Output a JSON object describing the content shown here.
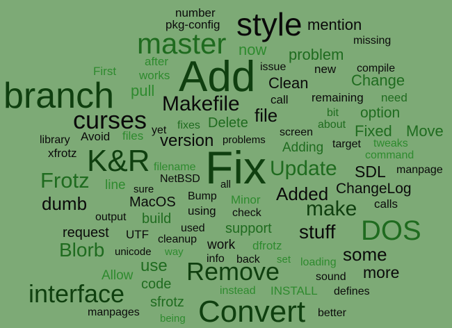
{
  "colors": {
    "background": "#7daa76",
    "black": "#0a0a0a",
    "dark_green": "#0f3f0f",
    "mid_green": "#1f6b1f",
    "light_green": "#2e8a2e"
  },
  "words": [
    {
      "text": "number",
      "color": "black"
    },
    {
      "text": "pkg-config",
      "color": "black"
    },
    {
      "text": "style",
      "color": "black"
    },
    {
      "text": "mention",
      "color": "black"
    },
    {
      "text": "master",
      "color": "mid_green"
    },
    {
      "text": "now",
      "color": "light_green"
    },
    {
      "text": "missing",
      "color": "black"
    },
    {
      "text": "problem",
      "color": "mid_green"
    },
    {
      "text": "after",
      "color": "light_green"
    },
    {
      "text": "First",
      "color": "light_green"
    },
    {
      "text": "works",
      "color": "light_green"
    },
    {
      "text": "Add",
      "color": "dark_green"
    },
    {
      "text": "issue",
      "color": "black"
    },
    {
      "text": "new",
      "color": "black"
    },
    {
      "text": "compile",
      "color": "black"
    },
    {
      "text": "Change",
      "color": "mid_green"
    },
    {
      "text": "branch",
      "color": "dark_green"
    },
    {
      "text": "pull",
      "color": "light_green"
    },
    {
      "text": "Clean",
      "color": "black"
    },
    {
      "text": "call",
      "color": "black"
    },
    {
      "text": "remaining",
      "color": "black"
    },
    {
      "text": "need",
      "color": "mid_green"
    },
    {
      "text": "Makefile",
      "color": "black"
    },
    {
      "text": "file",
      "color": "black"
    },
    {
      "text": "option",
      "color": "mid_green"
    },
    {
      "text": "bit",
      "color": "mid_green"
    },
    {
      "text": "curses",
      "color": "black"
    },
    {
      "text": "fixes",
      "color": "mid_green"
    },
    {
      "text": "Delete",
      "color": "mid_green"
    },
    {
      "text": "about",
      "color": "mid_green"
    },
    {
      "text": "Fixed",
      "color": "mid_green"
    },
    {
      "text": "Move",
      "color": "mid_green"
    },
    {
      "text": "library",
      "color": "black"
    },
    {
      "text": "Avoid",
      "color": "black"
    },
    {
      "text": "files",
      "color": "light_green"
    },
    {
      "text": "yet",
      "color": "black"
    },
    {
      "text": "screen",
      "color": "black"
    },
    {
      "text": "version",
      "color": "black"
    },
    {
      "text": "problems",
      "color": "black"
    },
    {
      "text": "target",
      "color": "black"
    },
    {
      "text": "tweaks",
      "color": "light_green"
    },
    {
      "text": "xfrotz",
      "color": "black"
    },
    {
      "text": "Adding",
      "color": "mid_green"
    },
    {
      "text": "command",
      "color": "light_green"
    },
    {
      "text": "K&R",
      "color": "dark_green"
    },
    {
      "text": "Fix",
      "color": "dark_green"
    },
    {
      "text": "Update",
      "color": "mid_green"
    },
    {
      "text": "SDL",
      "color": "black"
    },
    {
      "text": "filename",
      "color": "light_green"
    },
    {
      "text": "manpage",
      "color": "black"
    },
    {
      "text": "Frotz",
      "color": "mid_green"
    },
    {
      "text": "NetBSD",
      "color": "black"
    },
    {
      "text": "all",
      "color": "black"
    },
    {
      "text": "line",
      "color": "light_green"
    },
    {
      "text": "sure",
      "color": "black"
    },
    {
      "text": "ChangeLog",
      "color": "black"
    },
    {
      "text": "Added",
      "color": "black"
    },
    {
      "text": "Bump",
      "color": "black"
    },
    {
      "text": "dumb",
      "color": "black"
    },
    {
      "text": "MacOS",
      "color": "black"
    },
    {
      "text": "Minor",
      "color": "light_green"
    },
    {
      "text": "calls",
      "color": "black"
    },
    {
      "text": "make",
      "color": "dark_green"
    },
    {
      "text": "using",
      "color": "black"
    },
    {
      "text": "check",
      "color": "black"
    },
    {
      "text": "output",
      "color": "black"
    },
    {
      "text": "build",
      "color": "mid_green"
    },
    {
      "text": "DOS",
      "color": "mid_green"
    },
    {
      "text": "used",
      "color": "black"
    },
    {
      "text": "support",
      "color": "mid_green"
    },
    {
      "text": "request",
      "color": "black"
    },
    {
      "text": "UTF",
      "color": "black"
    },
    {
      "text": "stuff",
      "color": "black"
    },
    {
      "text": "cleanup",
      "color": "black"
    },
    {
      "text": "Blorb",
      "color": "mid_green"
    },
    {
      "text": "work",
      "color": "black"
    },
    {
      "text": "dfrotz",
      "color": "light_green"
    },
    {
      "text": "unicode",
      "color": "black"
    },
    {
      "text": "way",
      "color": "light_green"
    },
    {
      "text": "some",
      "color": "black"
    },
    {
      "text": "info",
      "color": "black"
    },
    {
      "text": "back",
      "color": "black"
    },
    {
      "text": "set",
      "color": "light_green"
    },
    {
      "text": "use",
      "color": "mid_green"
    },
    {
      "text": "Remove",
      "color": "dark_green"
    },
    {
      "text": "loading",
      "color": "light_green"
    },
    {
      "text": "more",
      "color": "black"
    },
    {
      "text": "Allow",
      "color": "light_green"
    },
    {
      "text": "sound",
      "color": "black"
    },
    {
      "text": "interface",
      "color": "dark_green"
    },
    {
      "text": "code",
      "color": "mid_green"
    },
    {
      "text": "instead",
      "color": "light_green"
    },
    {
      "text": "INSTALL",
      "color": "light_green"
    },
    {
      "text": "defines",
      "color": "black"
    },
    {
      "text": "sfrotz",
      "color": "mid_green"
    },
    {
      "text": "Convert",
      "color": "dark_green"
    },
    {
      "text": "manpages",
      "color": "black"
    },
    {
      "text": "being",
      "color": "light_green"
    },
    {
      "text": "better",
      "color": "black"
    }
  ]
}
